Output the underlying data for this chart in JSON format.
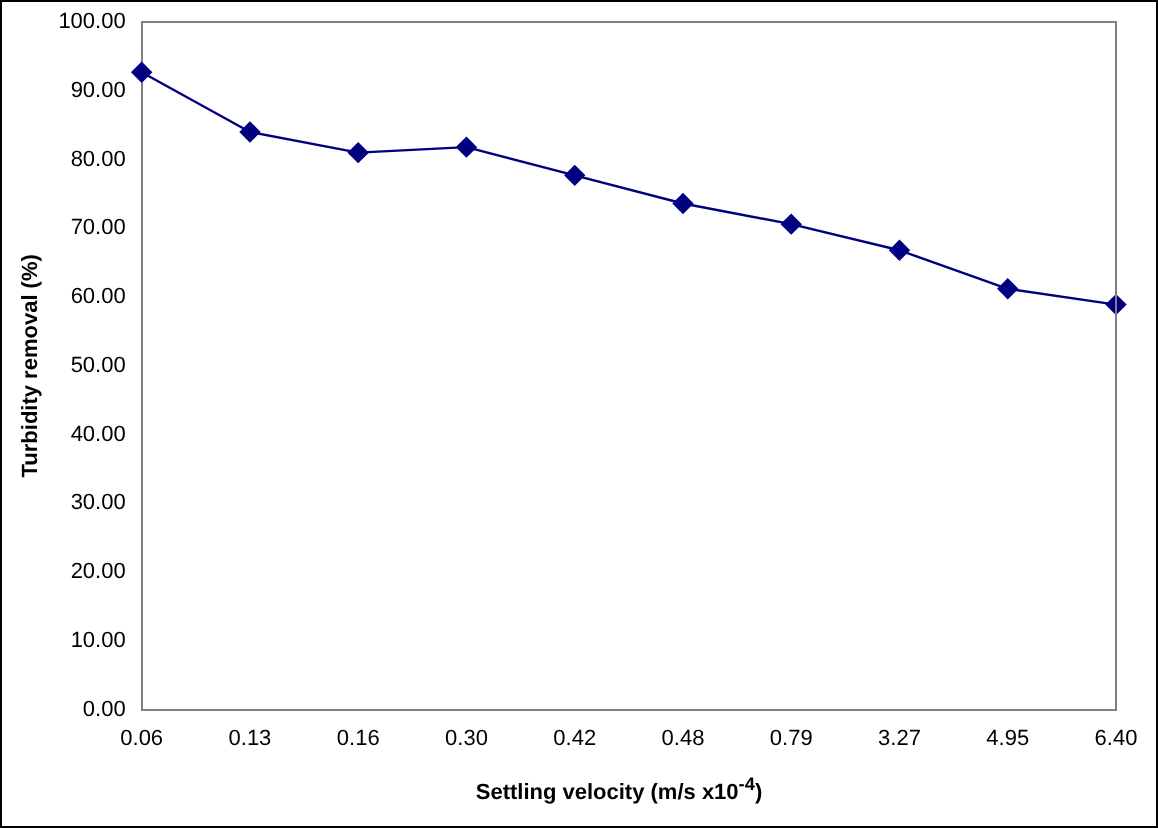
{
  "chart_data": {
    "type": "line",
    "xlabel": "Settling velocity (m/s x10$^{-4}$)",
    "ylabel": "Turbidity removal (%)",
    "categories": [
      "0.06",
      "0.13",
      "0.16",
      "0.30",
      "0.42",
      "0.48",
      "0.79",
      "3.27",
      "4.95",
      "6.40"
    ],
    "series": [
      {
        "color": "#000080",
        "values": [
          92.7,
          84.0,
          81.0,
          81.8,
          77.7,
          73.6,
          70.6,
          66.8,
          61.2,
          58.9
        ]
      }
    ],
    "ylim": [
      0,
      100
    ],
    "yticks": [
      {
        "value": 0,
        "label": "0.00"
      },
      {
        "value": 10,
        "label": "10.00"
      },
      {
        "value": 20,
        "label": "20.00"
      },
      {
        "value": 30,
        "label": "30.00"
      },
      {
        "value": 40,
        "label": "40.00"
      },
      {
        "value": 50,
        "label": "50.00"
      },
      {
        "value": 60,
        "label": "60.00"
      },
      {
        "value": 70,
        "label": "70.00"
      },
      {
        "value": 80,
        "label": "80.00"
      },
      {
        "value": 90,
        "label": "90.00"
      },
      {
        "value": 100,
        "label": "100.00"
      }
    ],
    "grid": false,
    "legend": false,
    "marker": "diamond",
    "line_style": "solid"
  }
}
